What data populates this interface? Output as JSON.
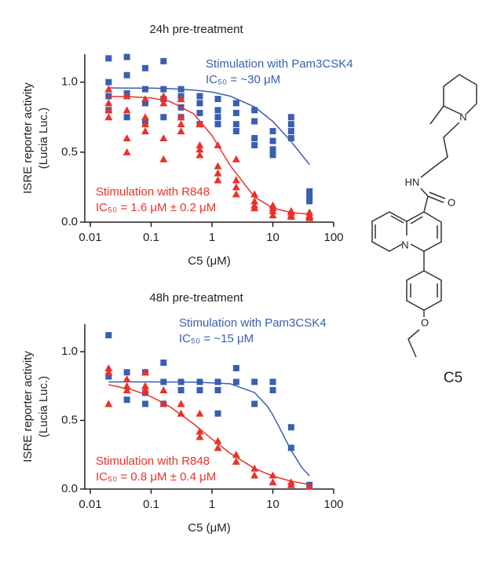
{
  "chart_data": [
    {
      "type": "scatter",
      "title": "24h pre-treatment",
      "xlabel": "C5 (μM)",
      "ylabel": [
        "ISRE reporter activity",
        "(Lucia Luc.)"
      ],
      "xscale": "log",
      "xlim": [
        0.01,
        100
      ],
      "xticks": [
        0.01,
        0.1,
        1,
        10,
        100
      ],
      "ylim": [
        0,
        1.2
      ],
      "yticks": [
        {
          "value": 0,
          "label": "0.0"
        },
        {
          "value": 0.5,
          "label": "0.5"
        },
        {
          "value": 1,
          "label": "1.0"
        }
      ],
      "series": [
        {
          "name": "Stimulation with Pam3CSK4",
          "color": "#3a5fb0",
          "marker": "square",
          "x": [
            0.02,
            0.02,
            0.02,
            0.02,
            0.04,
            0.04,
            0.04,
            0.04,
            0.08,
            0.08,
            0.08,
            0.08,
            0.16,
            0.16,
            0.16,
            0.16,
            0.31,
            0.31,
            0.31,
            0.31,
            0.63,
            0.63,
            0.63,
            0.63,
            1.25,
            1.25,
            1.25,
            1.25,
            2.5,
            2.5,
            2.5,
            2.5,
            5,
            5,
            5,
            5,
            10,
            10,
            10,
            10,
            20,
            20,
            20,
            20,
            40,
            40,
            40
          ],
          "values": [
            1.17,
            1.0,
            0.9,
            0.8,
            1.18,
            1.05,
            0.92,
            0.75,
            1.1,
            0.95,
            0.85,
            0.72,
            1.15,
            0.95,
            0.88,
            0.75,
            0.95,
            0.9,
            0.82,
            0.75,
            0.9,
            0.85,
            0.78,
            0.7,
            0.88,
            0.8,
            0.75,
            0.7,
            0.85,
            0.78,
            0.7,
            0.65,
            0.8,
            0.72,
            0.6,
            0.55,
            0.65,
            0.58,
            0.52,
            0.48,
            0.75,
            0.7,
            0.65,
            0.6,
            0.22,
            0.18,
            0.15
          ],
          "fit_x": [
            0.02,
            0.05,
            0.1,
            0.2,
            0.5,
            1,
            2,
            5,
            10,
            20,
            40
          ],
          "fit_y": [
            0.959,
            0.958,
            0.957,
            0.954,
            0.944,
            0.929,
            0.9,
            0.823,
            0.72,
            0.576,
            0.411
          ]
        },
        {
          "name": "Stimulation with R848",
          "color": "#e8322a",
          "marker": "triangle",
          "x": [
            0.02,
            0.02,
            0.02,
            0.02,
            0.04,
            0.04,
            0.04,
            0.04,
            0.08,
            0.08,
            0.08,
            0.08,
            0.16,
            0.16,
            0.16,
            0.16,
            0.31,
            0.31,
            0.31,
            0.31,
            0.63,
            0.63,
            0.63,
            0.63,
            1.25,
            1.25,
            1.25,
            1.25,
            2.5,
            2.5,
            2.5,
            2.5,
            5,
            5,
            5,
            5,
            10,
            10,
            10,
            10,
            20,
            20,
            20,
            20,
            40,
            40,
            40,
            40
          ],
          "values": [
            0.95,
            0.85,
            0.8,
            0.75,
            0.9,
            0.8,
            0.6,
            0.5,
            0.88,
            0.75,
            0.7,
            0.65,
            0.9,
            0.85,
            0.6,
            0.45,
            0.88,
            0.75,
            0.7,
            0.65,
            0.7,
            0.55,
            0.52,
            0.48,
            0.55,
            0.4,
            0.35,
            0.3,
            0.45,
            0.3,
            0.25,
            0.2,
            0.2,
            0.15,
            0.12,
            0.1,
            0.12,
            0.1,
            0.08,
            0.05,
            0.08,
            0.07,
            0.05,
            0.04,
            0.07,
            0.05,
            0.04,
            0.03
          ],
          "fit_x": [
            0.02,
            0.05,
            0.1,
            0.2,
            0.5,
            1,
            2,
            5,
            10,
            20,
            40
          ],
          "fit_y": [
            0.899,
            0.895,
            0.887,
            0.864,
            0.774,
            0.619,
            0.404,
            0.18,
            0.101,
            0.069,
            0.057
          ]
        }
      ],
      "annotations": [
        {
          "lines": [
            "Stimulation with Pam3CSK4",
            "IC₅₀ = ~30 μM"
          ],
          "color": "#3a5fb0"
        },
        {
          "lines": [
            "Stimulation with R848",
            "IC₅₀ = 1.6 μM ± 0.2 μM"
          ],
          "color": "#e8322a"
        }
      ]
    },
    {
      "type": "scatter",
      "title": "48h pre-treatment",
      "xlabel": "C5 (μM)",
      "ylabel": [
        "ISRE reporter activity",
        "(Lucia Luc.)"
      ],
      "xscale": "log",
      "xlim": [
        0.01,
        100
      ],
      "xticks": [
        0.01,
        0.1,
        1,
        10,
        100
      ],
      "ylim": [
        0,
        1.2
      ],
      "yticks": [
        {
          "value": 0,
          "label": "0.0"
        },
        {
          "value": 0.5,
          "label": "0.5"
        },
        {
          "value": 1,
          "label": "1.0"
        }
      ],
      "series": [
        {
          "name": "Stimulation with Pam3CSK4",
          "color": "#3a5fb0",
          "marker": "square",
          "x": [
            0.02,
            0.02,
            0.04,
            0.04,
            0.08,
            0.08,
            0.08,
            0.16,
            0.16,
            0.16,
            0.31,
            0.31,
            0.63,
            0.63,
            1.25,
            1.25,
            1.25,
            2.5,
            2.5,
            5,
            5,
            10,
            10,
            20,
            20,
            40
          ],
          "values": [
            1.12,
            0.82,
            0.85,
            0.65,
            0.85,
            0.7,
            0.62,
            0.92,
            0.78,
            0.62,
            0.78,
            0.72,
            0.78,
            0.72,
            0.78,
            0.72,
            0.55,
            0.88,
            0.78,
            0.78,
            0.62,
            0.78,
            0.72,
            0.45,
            0.3,
            0.03
          ],
          "fit_x": [
            0.02,
            0.1,
            0.5,
            2,
            5,
            8,
            10,
            15,
            20,
            30,
            40
          ],
          "fit_y": [
            0.78,
            0.78,
            0.779,
            0.766,
            0.702,
            0.607,
            0.54,
            0.39,
            0.281,
            0.156,
            0.096
          ]
        },
        {
          "name": "Stimulation with R848",
          "color": "#e8322a",
          "marker": "triangle",
          "x": [
            0.02,
            0.02,
            0.02,
            0.04,
            0.04,
            0.04,
            0.08,
            0.08,
            0.08,
            0.16,
            0.16,
            0.31,
            0.31,
            0.63,
            0.63,
            0.63,
            1.25,
            1.25,
            2.5,
            2.5,
            5,
            5,
            10,
            10,
            20,
            20,
            40
          ],
          "values": [
            0.88,
            0.85,
            0.62,
            0.8,
            0.75,
            0.72,
            0.85,
            0.75,
            0.72,
            0.72,
            0.62,
            0.62,
            0.55,
            0.55,
            0.42,
            0.38,
            0.35,
            0.3,
            0.25,
            0.2,
            0.15,
            0.1,
            0.1,
            0.05,
            0.05,
            0.03,
            0.02
          ],
          "fit_x": [
            0.02,
            0.05,
            0.1,
            0.2,
            0.5,
            1,
            2,
            5,
            10,
            20,
            40
          ],
          "fit_y": [
            0.76,
            0.721,
            0.673,
            0.602,
            0.474,
            0.364,
            0.26,
            0.15,
            0.094,
            0.057,
            0.033
          ]
        }
      ],
      "annotations": [
        {
          "lines": [
            "Stimulation with Pam3CSK4",
            "IC₅₀ = ~15 μM"
          ],
          "color": "#3a5fb0"
        },
        {
          "lines": [
            "Stimulation with R848",
            "IC₅₀ = 0.8 μM ± 0.4 μM"
          ],
          "color": "#e8322a"
        }
      ]
    }
  ],
  "structure": {
    "name": "C5",
    "atoms": [
      "N",
      "HN",
      "O",
      "N",
      "O"
    ]
  }
}
